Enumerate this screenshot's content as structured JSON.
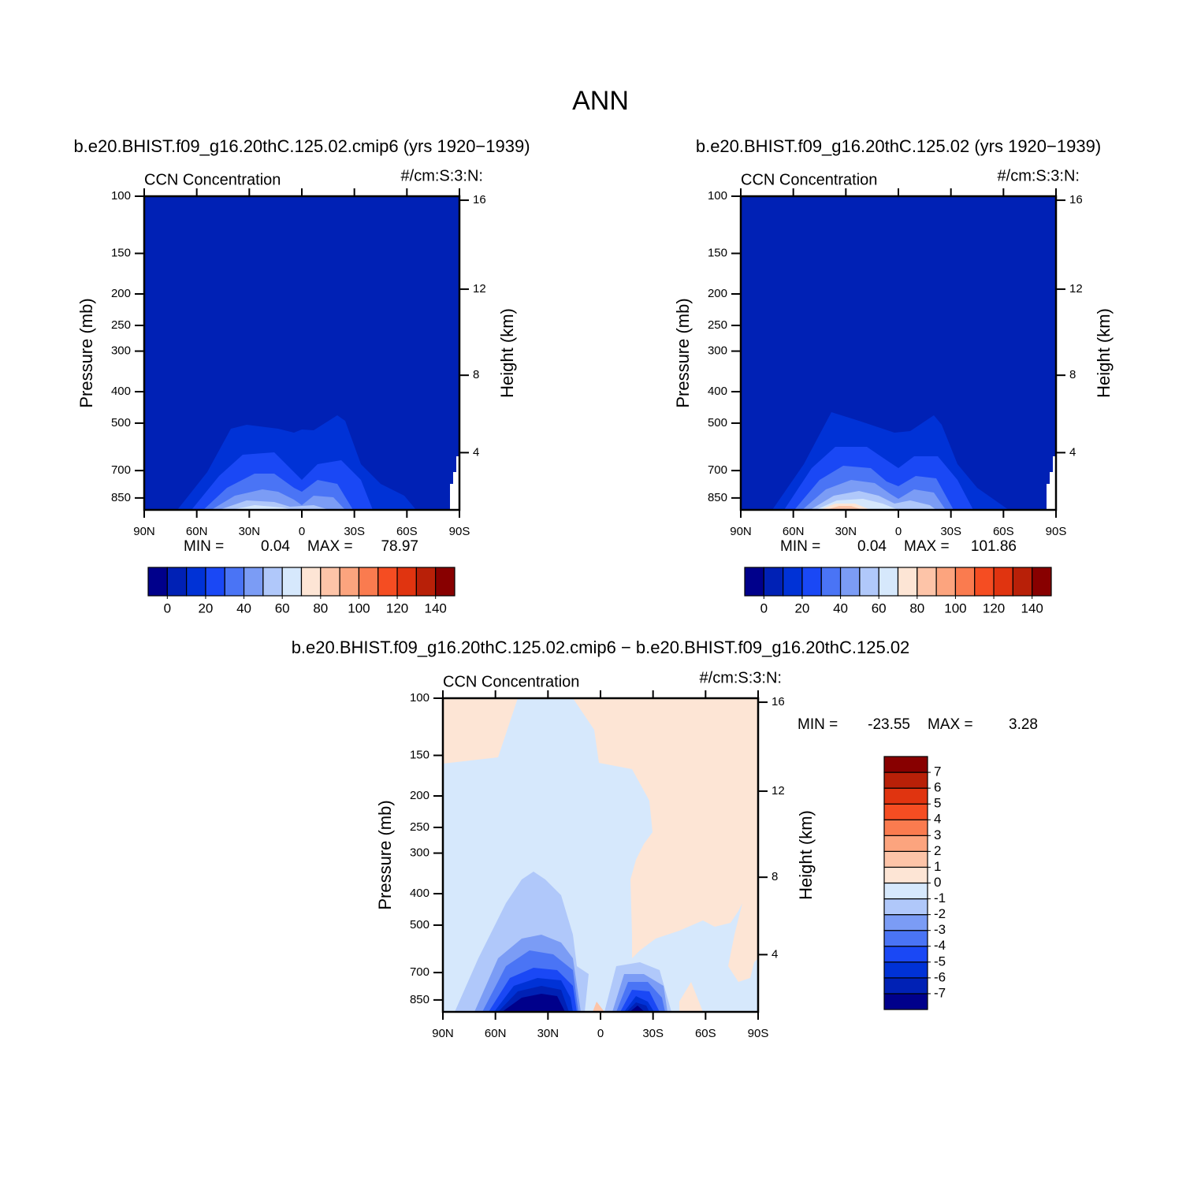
{
  "suptitle": "ANN",
  "chart_data": [
    {
      "type": "contour",
      "title": "b.e20.BHIST.f09_g16.20thC.125.02.cmip6 (yrs 1920−1939)",
      "left_string": "CCN Concentration",
      "right_string": "#/cm:S:3:N:",
      "ylabel": "Pressure (mb)",
      "y2label": "Height (km)",
      "xlim": [
        90,
        -90
      ],
      "xticks": [
        {
          "value": 90,
          "label": "90N"
        },
        {
          "value": 60,
          "label": "60N"
        },
        {
          "value": 30,
          "label": "30N"
        },
        0,
        {
          "value": -30,
          "label": "30S"
        },
        {
          "value": -60,
          "label": "60S"
        },
        {
          "value": -90,
          "label": "90S"
        }
      ],
      "ylim": [
        925,
        100
      ],
      "ylog": true,
      "yticks": [
        100,
        150,
        200,
        250,
        300,
        400,
        500,
        700,
        850
      ],
      "y2lim": [
        0.76,
        16.18
      ],
      "y2ticks": [
        4,
        8,
        12,
        16
      ],
      "min_label": "MIN =",
      "min": 0.04,
      "max_label": "MAX =",
      "max": 78.97,
      "colorbar": {
        "orientation": "horizontal",
        "colors": [
          "#00008b",
          "#0021b5",
          "#0032d6",
          "#1a48f5",
          "#4a74f5",
          "#7b9cf5",
          "#b0c8fa",
          "#d6e8fc",
          "#fde5d5",
          "#fdc4a8",
          "#fca47e",
          "#fa7b4f",
          "#f54d22",
          "#e03410",
          "#b82008",
          "#880000"
        ],
        "ticks": [
          0,
          20,
          40,
          60,
          80,
          100,
          120,
          140
        ]
      }
    },
    {
      "type": "contour",
      "title": "b.e20.BHIST.f09_g16.20thC.125.02 (yrs 1920−1939)",
      "left_string": "CCN Concentration",
      "right_string": "#/cm:S:3:N:",
      "ylabel": "Pressure (mb)",
      "y2label": "Height (km)",
      "xlim": [
        90,
        -90
      ],
      "xticks": [
        {
          "value": 90,
          "label": "90N"
        },
        {
          "value": 60,
          "label": "60N"
        },
        {
          "value": 30,
          "label": "30N"
        },
        0,
        {
          "value": -30,
          "label": "30S"
        },
        {
          "value": -60,
          "label": "60S"
        },
        {
          "value": -90,
          "label": "90S"
        }
      ],
      "ylim": [
        925,
        100
      ],
      "ylog": true,
      "yticks": [
        100,
        150,
        200,
        250,
        300,
        400,
        500,
        700,
        850
      ],
      "y2lim": [
        0.76,
        16.18
      ],
      "y2ticks": [
        4,
        8,
        12,
        16
      ],
      "min_label": "MIN =",
      "min": 0.04,
      "max_label": "MAX =",
      "max": 101.86,
      "colorbar": {
        "orientation": "horizontal",
        "colors": [
          "#00008b",
          "#0021b5",
          "#0032d6",
          "#1a48f5",
          "#4a74f5",
          "#7b9cf5",
          "#b0c8fa",
          "#d6e8fc",
          "#fde5d5",
          "#fdc4a8",
          "#fca47e",
          "#fa7b4f",
          "#f54d22",
          "#e03410",
          "#b82008",
          "#880000"
        ],
        "ticks": [
          0,
          20,
          40,
          60,
          80,
          100,
          120,
          140
        ]
      }
    },
    {
      "type": "contour",
      "title": "b.e20.BHIST.f09_g16.20thC.125.02.cmip6 − b.e20.BHIST.f09_g16.20thC.125.02",
      "left_string": "CCN Concentration",
      "right_string": "#/cm:S:3:N:",
      "ylabel": "Pressure (mb)",
      "y2label": "Height (km)",
      "xlim": [
        90,
        -90
      ],
      "xticks": [
        {
          "value": 90,
          "label": "90N"
        },
        {
          "value": 60,
          "label": "60N"
        },
        {
          "value": 30,
          "label": "30N"
        },
        0,
        {
          "value": -30,
          "label": "30S"
        },
        {
          "value": -60,
          "label": "60S"
        },
        {
          "value": -90,
          "label": "90S"
        }
      ],
      "ylim": [
        925,
        100
      ],
      "ylog": true,
      "yticks": [
        100,
        150,
        200,
        250,
        300,
        400,
        500,
        700,
        850
      ],
      "y2lim": [
        0.76,
        16.18
      ],
      "y2ticks": [
        4,
        8,
        12,
        16
      ],
      "min_label": "MIN =",
      "min": -23.55,
      "max_label": "MAX =",
      "max": 3.28,
      "colorbar": {
        "orientation": "vertical",
        "colors": [
          "#00008b",
          "#0021b5",
          "#0032d6",
          "#1a48f5",
          "#4a74f5",
          "#7b9cf5",
          "#b0c8fa",
          "#d6e8fc",
          "#fde5d5",
          "#fdc4a8",
          "#fca47e",
          "#fa7b4f",
          "#f54d22",
          "#e03410",
          "#b82008",
          "#880000"
        ],
        "ticks": [
          7,
          6,
          5,
          4,
          3,
          2,
          1,
          0,
          -1,
          -2,
          -3,
          -4,
          -5,
          -6,
          -7
        ]
      }
    }
  ]
}
